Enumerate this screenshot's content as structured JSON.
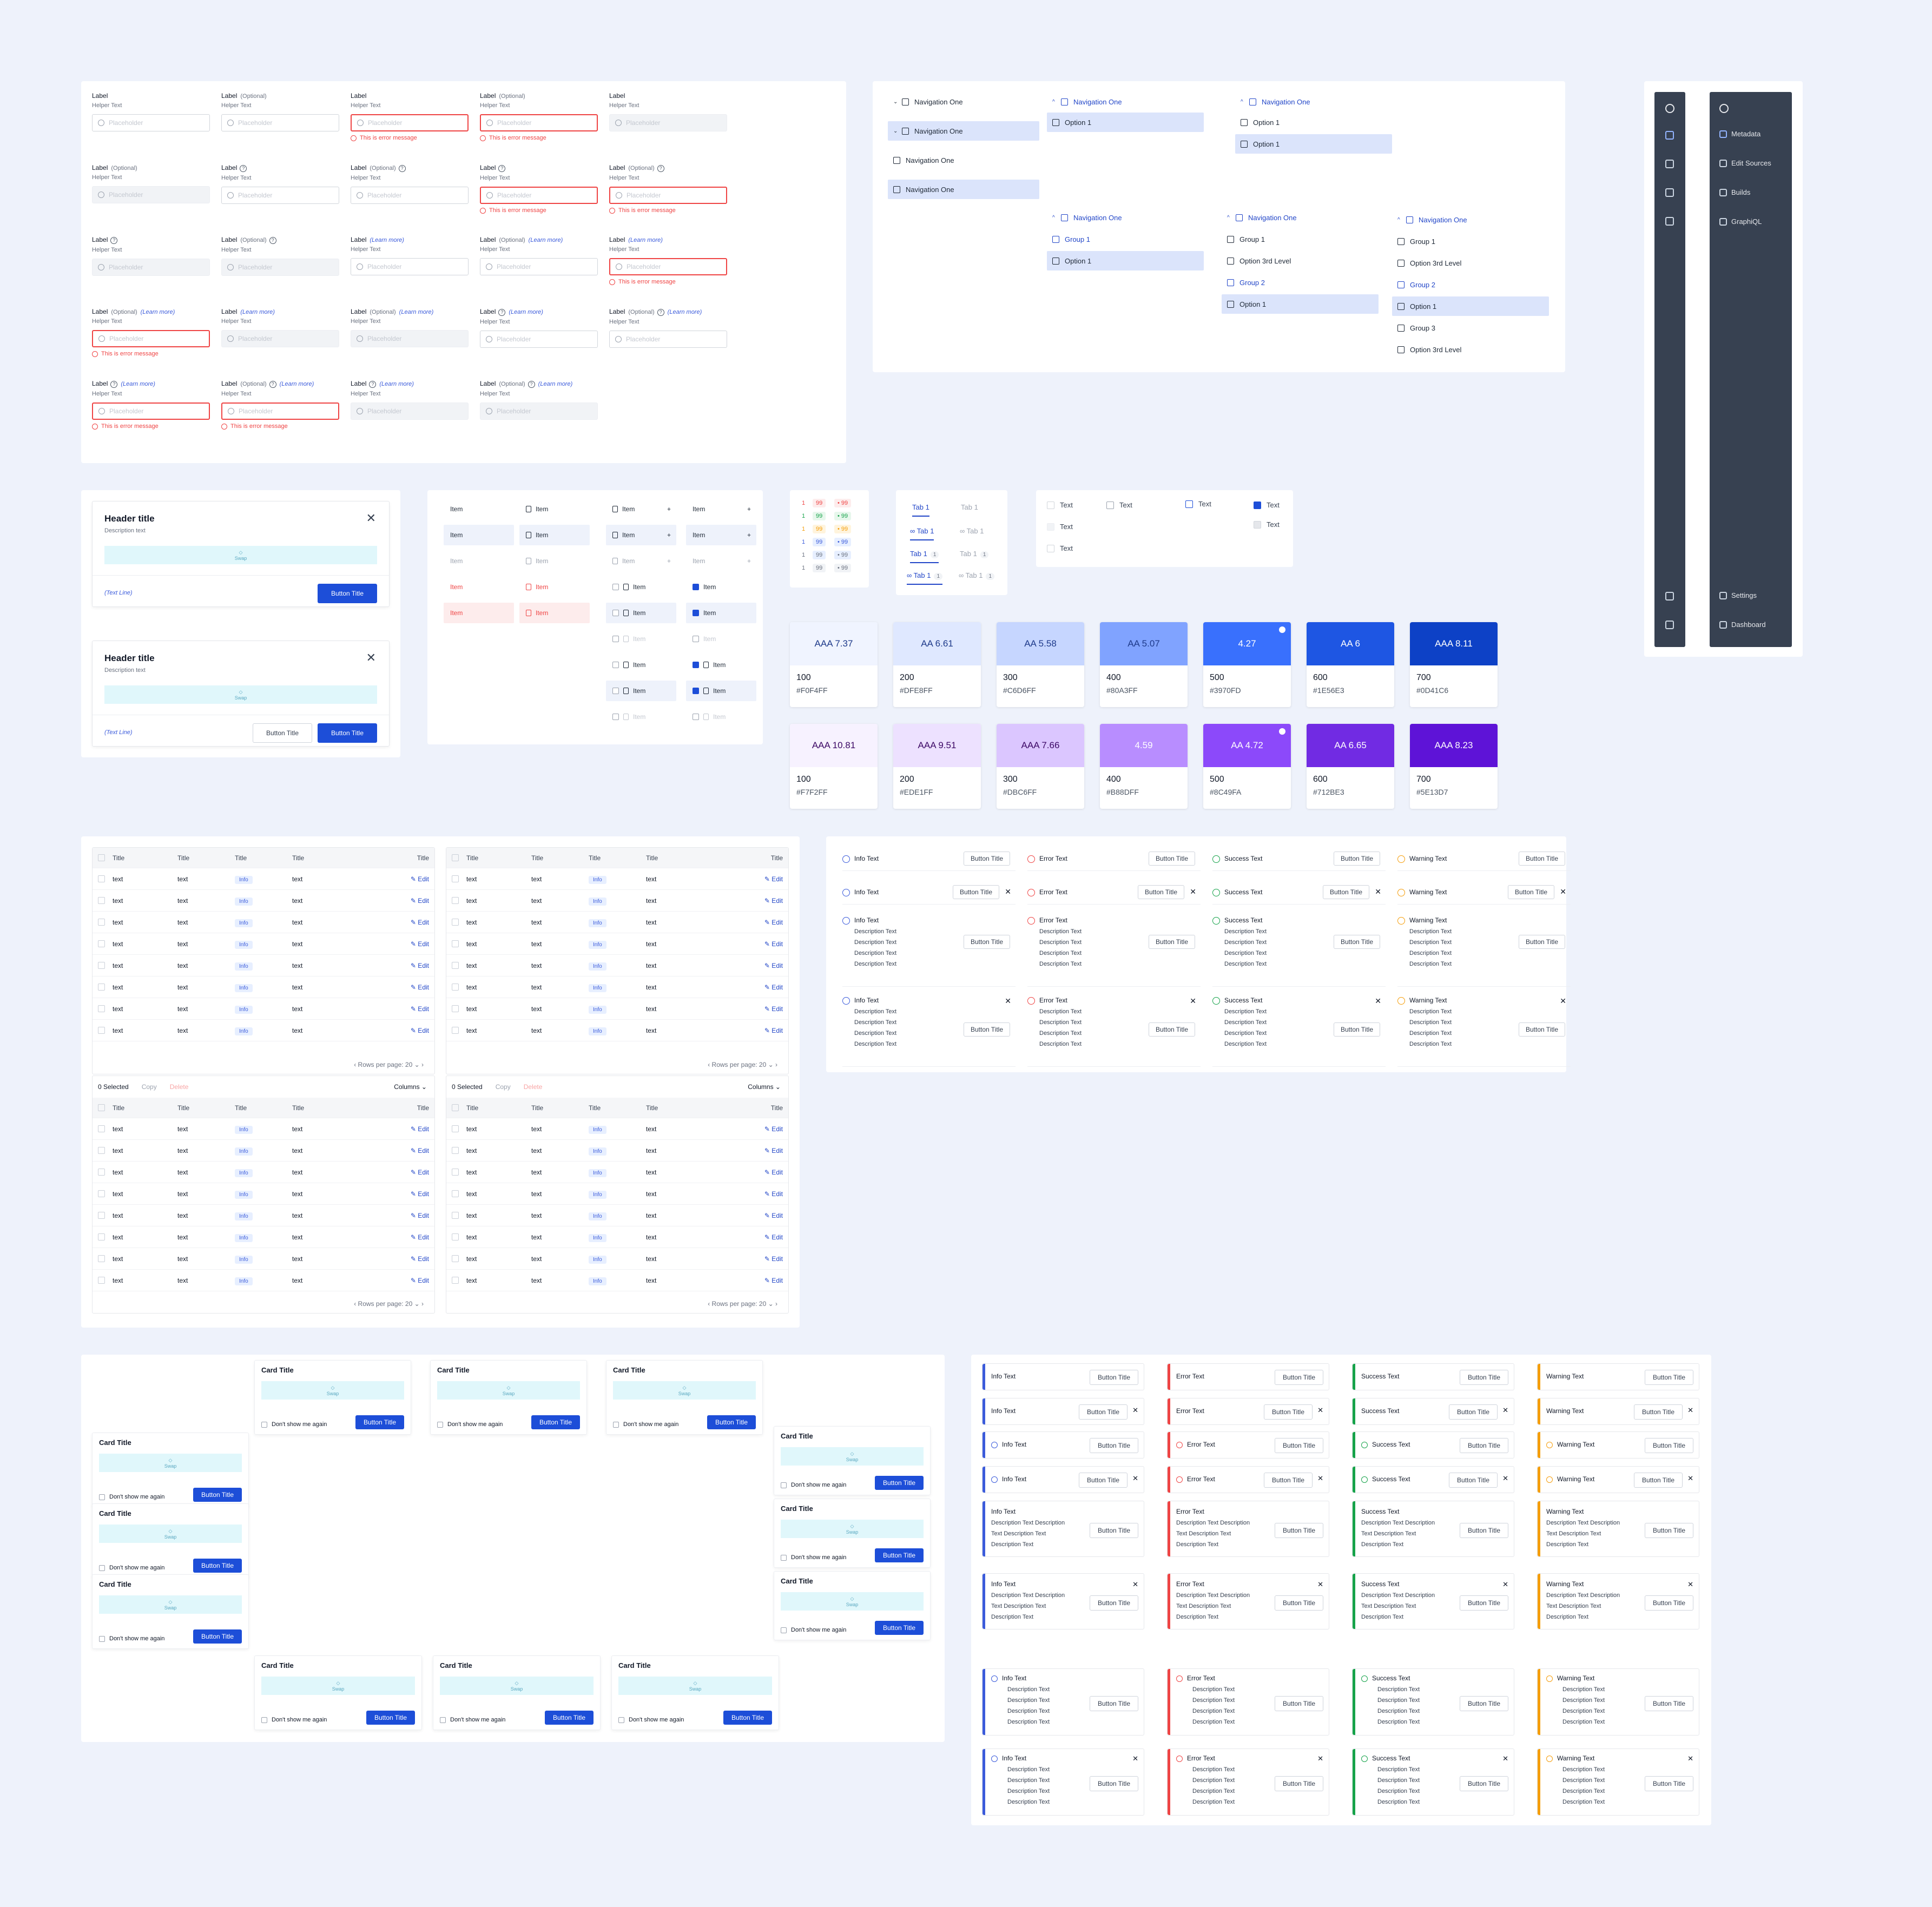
{
  "form": {
    "label": "Label",
    "optional": "(Optional)",
    "learn_more": "(Learn more)",
    "helper": "Helper Text",
    "placeholder": "Placeholder",
    "error": "This is error message",
    "help_icon": "?"
  },
  "navigation": {
    "item": "Navigation One",
    "option1": "Option 1",
    "group1": "Group 1",
    "group2": "Group 2",
    "group3": "Group 3",
    "third_level": "Option 3rd Level"
  },
  "sidebar": {
    "items": [
      {
        "label": "Metadata",
        "icon": "document-icon"
      },
      {
        "label": "Edit Sources",
        "icon": "code-icon"
      },
      {
        "label": "Builds",
        "icon": "clock-icon"
      },
      {
        "label": "GraphiQL",
        "icon": "play-icon"
      }
    ],
    "bottom": [
      {
        "label": "Settings",
        "icon": "gear-icon"
      },
      {
        "label": "Dashboard",
        "icon": "dashboard-icon"
      }
    ]
  },
  "modal": {
    "header": "Header title",
    "desc": "Description text",
    "swap": "Swap",
    "text_line": "(Text Line)",
    "button": "Button Title",
    "close": "✕"
  },
  "list": {
    "item": "Item"
  },
  "badges": {
    "rows": [
      [
        "1",
        "99",
        "99"
      ],
      [
        "1",
        "99",
        "99"
      ],
      [
        "1",
        "99",
        "99"
      ],
      [
        "1",
        "99",
        "99"
      ],
      [
        "1",
        "99",
        "99"
      ],
      [
        "1",
        "99",
        "99"
      ]
    ]
  },
  "tabs": {
    "tab": "Tab 1",
    "count": "1"
  },
  "checkbox": {
    "text": "Text"
  },
  "colors": {
    "blue": [
      {
        "ratio": "AAA 7.37",
        "n": "100",
        "hex": "#F0F4FF",
        "fg": "#1e3a8a"
      },
      {
        "ratio": "AA 6.61",
        "n": "200",
        "hex": "#DFE8FF",
        "fg": "#1e3a8a"
      },
      {
        "ratio": "AA 5.58",
        "n": "300",
        "hex": "#C6D6FF",
        "fg": "#1e3a8a"
      },
      {
        "ratio": "AA 5.07",
        "n": "400",
        "hex": "#80A3FF",
        "fg": "#1e3a8a"
      },
      {
        "ratio": "4.27",
        "n": "500",
        "hex": "#3970FD",
        "fg": "#ffffff"
      },
      {
        "ratio": "AA 6",
        "n": "600",
        "hex": "#1E56E3",
        "fg": "#ffffff"
      },
      {
        "ratio": "AAA 8.11",
        "n": "700",
        "hex": "#0D41C6",
        "fg": "#ffffff"
      }
    ],
    "purple": [
      {
        "ratio": "AAA 10.81",
        "n": "100",
        "hex": "#F7F2FF",
        "fg": "#3b0764"
      },
      {
        "ratio": "AAA 9.51",
        "n": "200",
        "hex": "#EDE1FF",
        "fg": "#3b0764"
      },
      {
        "ratio": "AAA 7.66",
        "n": "300",
        "hex": "#DBC6FF",
        "fg": "#3b0764"
      },
      {
        "ratio": "4.59",
        "n": "400",
        "hex": "#B88DFF",
        "fg": "#ffffff"
      },
      {
        "ratio": "AA 4.72",
        "n": "500",
        "hex": "#8C49FA",
        "fg": "#ffffff"
      },
      {
        "ratio": "AA 6.65",
        "n": "600",
        "hex": "#712BE3",
        "fg": "#ffffff"
      },
      {
        "ratio": "AAA 8.23",
        "n": "700",
        "hex": "#5E13D7",
        "fg": "#ffffff"
      }
    ]
  },
  "table": {
    "header": "Title",
    "cell": "text",
    "info": "Info",
    "edit": "Edit",
    "rows_per_page": "Rows per page: 20",
    "selected": "0 Selected",
    "copy": "Copy",
    "delete": "Delete",
    "columns": "Columns"
  },
  "alerts": {
    "types": [
      {
        "text": "Info Text",
        "color": "#3b5bdb"
      },
      {
        "text": "Error Text",
        "color": "#ef4444"
      },
      {
        "text": "Success Text",
        "color": "#16a34a"
      },
      {
        "text": "Warning Text",
        "color": "#f59e0b"
      }
    ],
    "button": "Button Title",
    "desc": "Description Text",
    "desc_long": "Description Text Description",
    "desc_long2": "Text Description Text"
  },
  "cards": {
    "title": "Card Title",
    "swap": "Swap",
    "dont_show": "Don't show me again",
    "button": "Button Title"
  }
}
